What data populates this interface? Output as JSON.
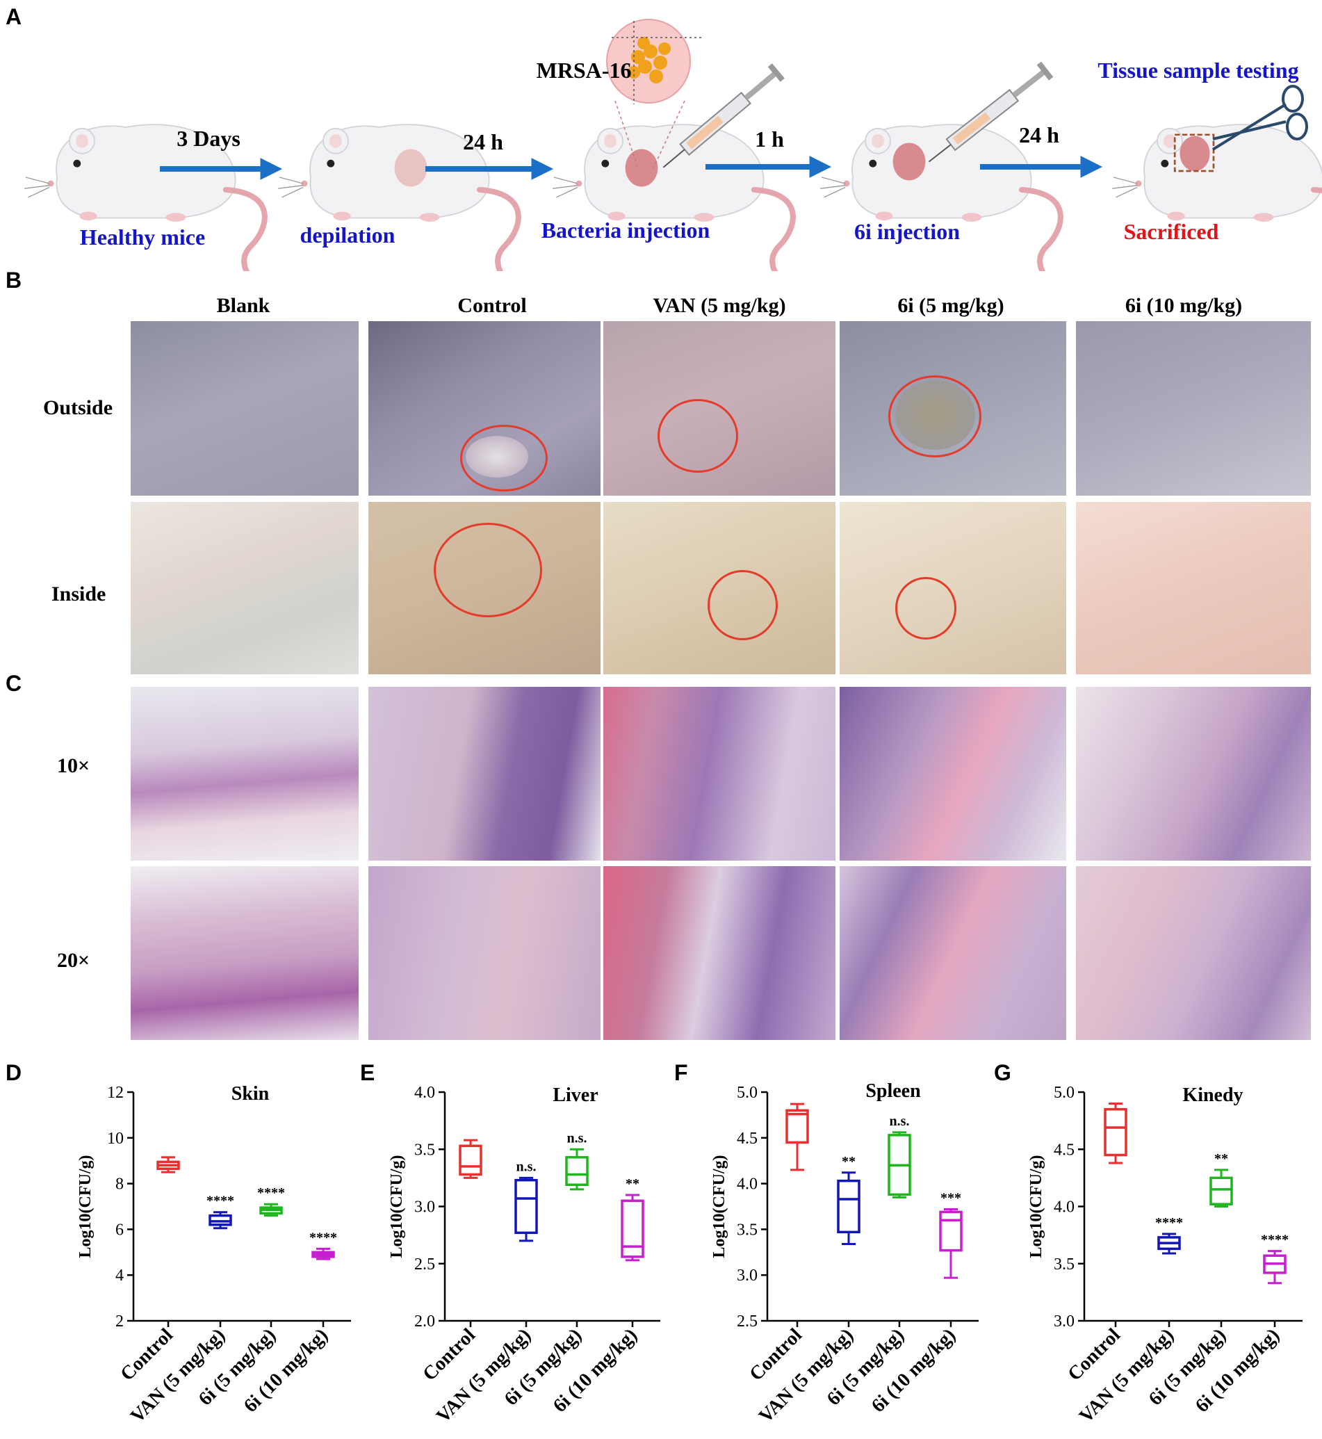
{
  "panels": {
    "A": "A",
    "B": "B",
    "C": "C",
    "D": "D",
    "E": "E",
    "F": "F",
    "G": "G"
  },
  "workflow": {
    "steps": [
      {
        "label": "Healthy mice"
      },
      {
        "label": "depilation"
      },
      {
        "label": "Bacteria injection"
      },
      {
        "label": "6i injection"
      },
      {
        "label": "Sacrificed"
      }
    ],
    "arrows": [
      {
        "label": "3 Days"
      },
      {
        "label": "24 h"
      },
      {
        "label": "1 h"
      },
      {
        "label": "24 h"
      }
    ],
    "strain_label": "MRSA-16",
    "testing_label": "Tissue sample testing",
    "colors": {
      "step": "#1515c8",
      "sacrificed": "#e0141a",
      "arrow": "#1c6fc7"
    }
  },
  "photos": {
    "columns": [
      "Blank",
      "Control",
      "VAN (5 mg/kg)",
      "6i (5 mg/kg)",
      "6i (10 mg/kg)"
    ],
    "rows_B": [
      "Outside",
      "Inside"
    ],
    "rows_C": [
      "10×",
      "20×"
    ]
  },
  "chart_data": [
    {
      "type": "box",
      "panel": "D",
      "title": "Skin",
      "ylabel": "Log10(CFU/g)",
      "ylim": [
        2,
        12
      ],
      "yticks": [
        2,
        4,
        6,
        8,
        10,
        12
      ],
      "categories": [
        "Control",
        "VAN (5 mg/kg)",
        "6i (5 mg/kg)",
        "6i (10 mg/kg)"
      ],
      "boxes": [
        {
          "min": 8.5,
          "q1": 8.65,
          "median": 8.8,
          "q3": 8.95,
          "max": 9.15,
          "color": "#e8312f",
          "sig": ""
        },
        {
          "min": 6.05,
          "q1": 6.2,
          "median": 6.35,
          "q3": 6.6,
          "max": 6.75,
          "color": "#1216b5",
          "sig": "****"
        },
        {
          "min": 6.6,
          "q1": 6.7,
          "median": 6.85,
          "q3": 6.95,
          "max": 7.1,
          "color": "#1fb51f",
          "sig": "****"
        },
        {
          "min": 4.7,
          "q1": 4.8,
          "median": 4.9,
          "q3": 5.0,
          "max": 5.15,
          "color": "#c51fcf",
          "sig": "****"
        }
      ]
    },
    {
      "type": "box",
      "panel": "E",
      "title": "Liver",
      "ylabel": "Log10(CFU/g)",
      "ylim": [
        2.0,
        4.0
      ],
      "yticks": [
        2.0,
        2.5,
        3.0,
        3.5,
        4.0
      ],
      "categories": [
        "Control",
        "VAN (5 mg/kg)",
        "6i (5 mg/kg)",
        "6i (10 mg/kg)"
      ],
      "boxes": [
        {
          "min": 3.25,
          "q1": 3.28,
          "median": 3.35,
          "q3": 3.53,
          "max": 3.58,
          "color": "#e8312f",
          "sig": ""
        },
        {
          "min": 2.7,
          "q1": 2.77,
          "median": 3.07,
          "q3": 3.23,
          "max": 3.25,
          "color": "#1216b5",
          "sig": "n.s."
        },
        {
          "min": 3.15,
          "q1": 3.19,
          "median": 3.28,
          "q3": 3.43,
          "max": 3.5,
          "color": "#1fb51f",
          "sig": "n.s."
        },
        {
          "min": 2.53,
          "q1": 2.56,
          "median": 2.65,
          "q3": 3.05,
          "max": 3.1,
          "color": "#c51fcf",
          "sig": "**"
        }
      ]
    },
    {
      "type": "box",
      "panel": "F",
      "title": "Spleen",
      "ylabel": "Log10(CFU/g)",
      "ylim": [
        2.5,
        5.0
      ],
      "yticks": [
        2.5,
        3.0,
        3.5,
        4.0,
        4.5,
        5.0
      ],
      "categories": [
        "Control",
        "VAN (5 mg/kg)",
        "6i (5 mg/kg)",
        "6i (10 mg/kg)"
      ],
      "boxes": [
        {
          "min": 4.15,
          "q1": 4.45,
          "median": 4.76,
          "q3": 4.8,
          "max": 4.87,
          "color": "#e8312f",
          "sig": ""
        },
        {
          "min": 3.34,
          "q1": 3.47,
          "median": 3.83,
          "q3": 4.03,
          "max": 4.12,
          "color": "#1216b5",
          "sig": "**"
        },
        {
          "min": 3.85,
          "q1": 3.88,
          "median": 4.2,
          "q3": 4.53,
          "max": 4.56,
          "color": "#1fb51f",
          "sig": "n.s."
        },
        {
          "min": 2.97,
          "q1": 3.27,
          "median": 3.6,
          "q3": 3.69,
          "max": 3.72,
          "color": "#c51fcf",
          "sig": "***"
        }
      ]
    },
    {
      "type": "box",
      "panel": "G",
      "title": "Kinedy",
      "ylabel": "Log10(CFU/g)",
      "ylim": [
        3.0,
        5.0
      ],
      "yticks": [
        3.0,
        3.5,
        4.0,
        4.5,
        5.0
      ],
      "categories": [
        "Control",
        "VAN (5 mg/kg)",
        "6i (5 mg/kg)",
        "6i (10 mg/kg)"
      ],
      "boxes": [
        {
          "min": 4.38,
          "q1": 4.45,
          "median": 4.69,
          "q3": 4.85,
          "max": 4.9,
          "color": "#e8312f",
          "sig": ""
        },
        {
          "min": 3.59,
          "q1": 3.63,
          "median": 3.68,
          "q3": 3.73,
          "max": 3.76,
          "color": "#1216b5",
          "sig": "****"
        },
        {
          "min": 4.0,
          "q1": 4.02,
          "median": 4.15,
          "q3": 4.25,
          "max": 4.32,
          "color": "#1fb51f",
          "sig": "**"
        },
        {
          "min": 3.33,
          "q1": 3.42,
          "median": 3.5,
          "q3": 3.57,
          "max": 3.61,
          "color": "#c51fcf",
          "sig": "****"
        }
      ]
    }
  ]
}
